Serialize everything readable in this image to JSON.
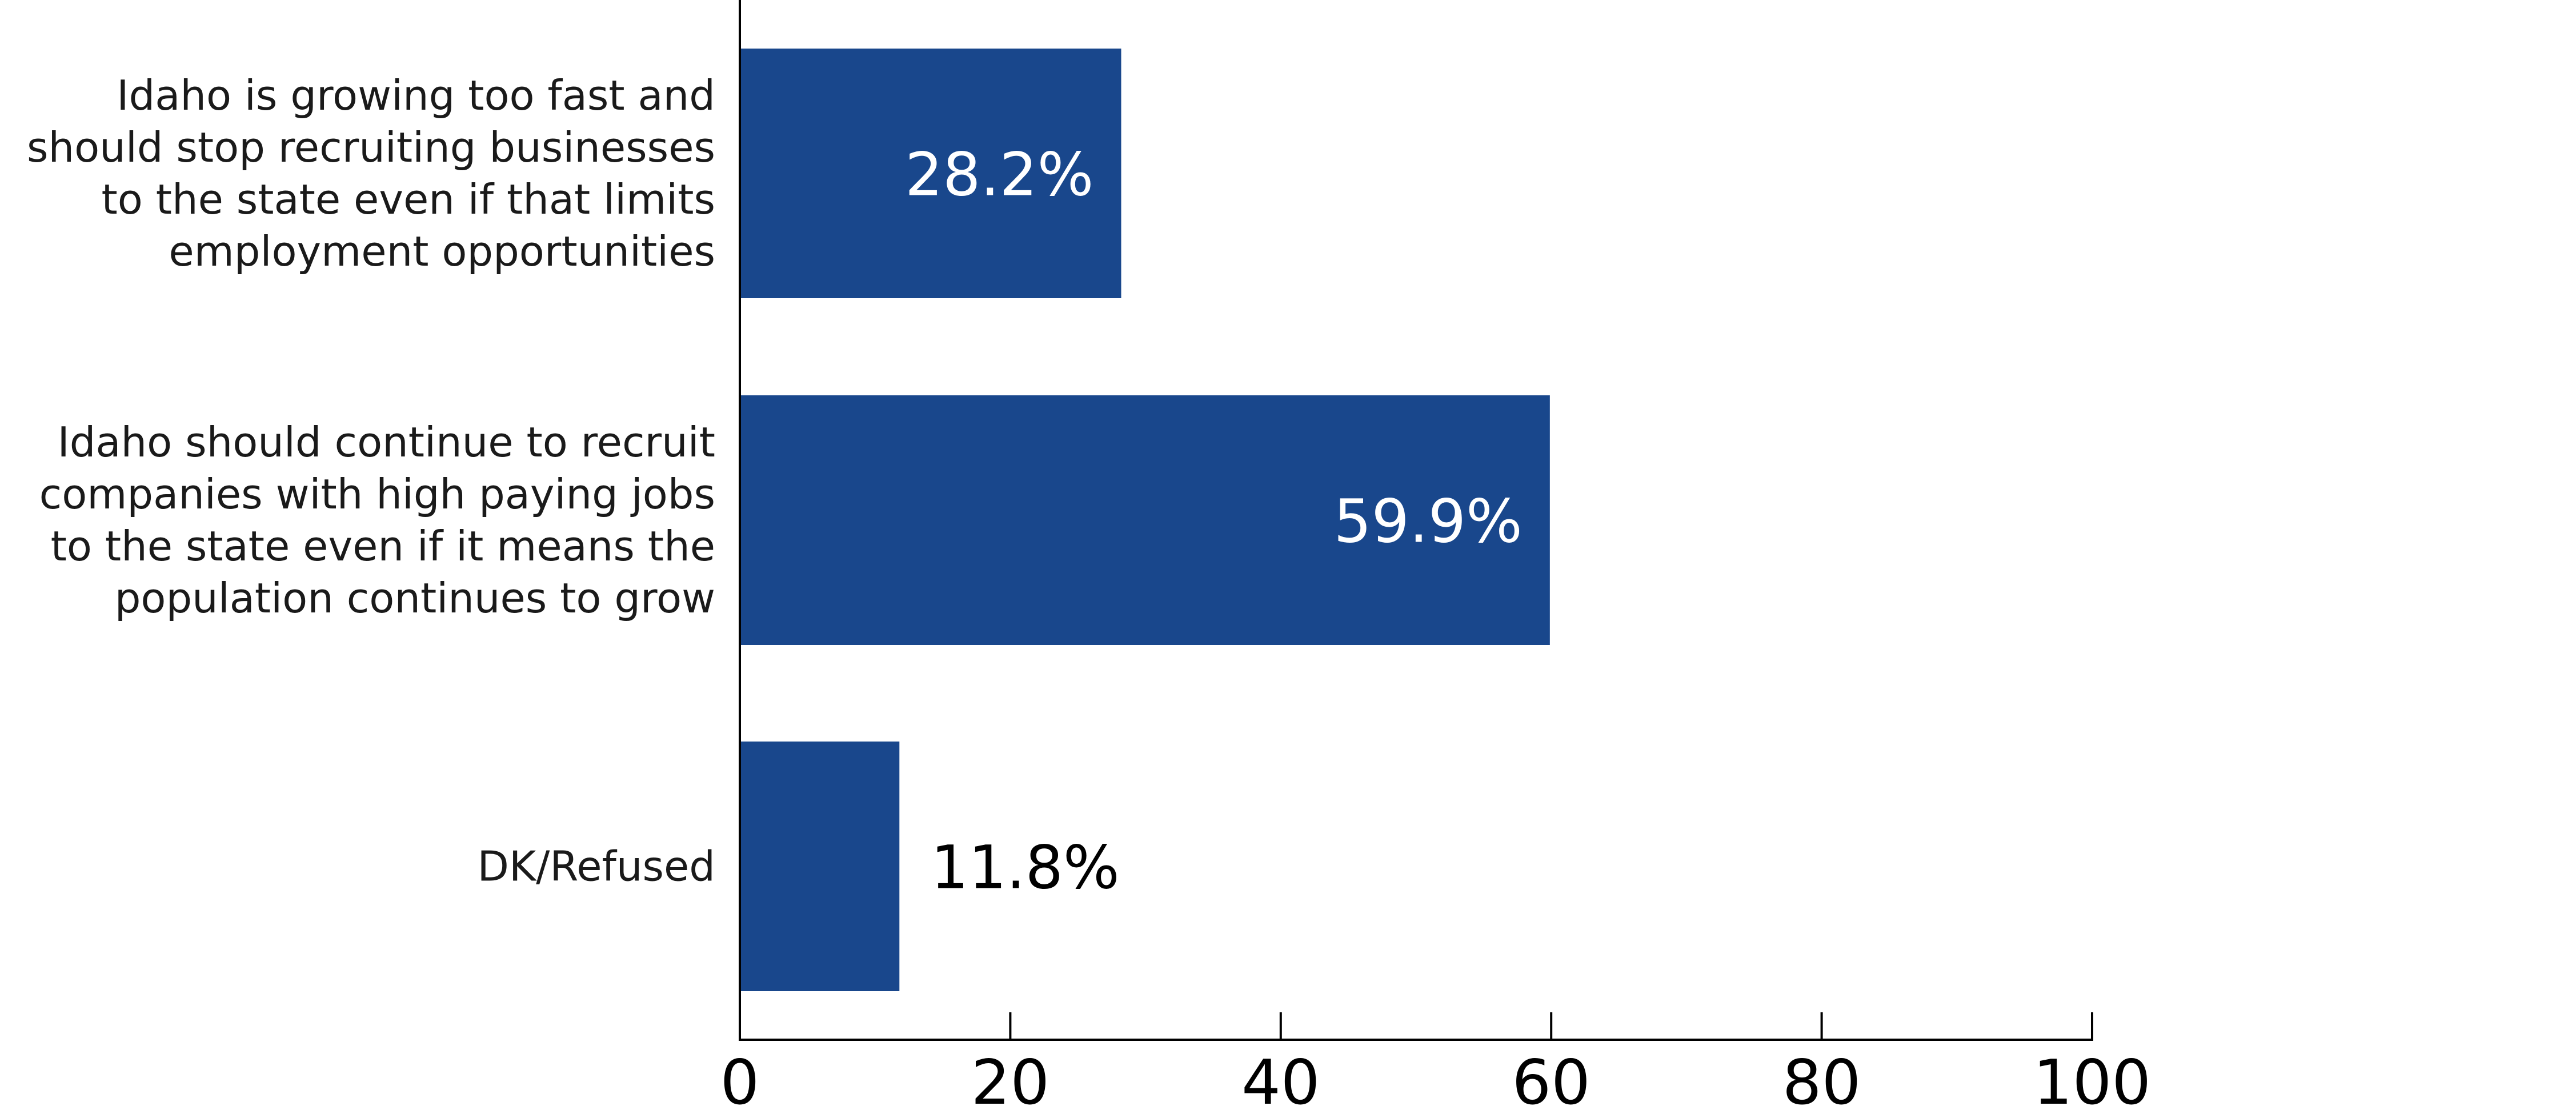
{
  "chart_data": {
    "type": "bar",
    "orientation": "horizontal",
    "categories": [
      [
        "Idaho is growing too fast and",
        "should stop recruiting businesses",
        "to the state even if that limits",
        "employment opportunities"
      ],
      [
        "Idaho should continue to recruit",
        "companies with high paying jobs",
        "to the state even if it means the",
        "population continues to grow"
      ],
      [
        "DK/Refused"
      ]
    ],
    "values": [
      28.2,
      59.9,
      11.8
    ],
    "data_labels": [
      "28.2%",
      "59.9%",
      "11.8%"
    ],
    "xlim": [
      0,
      100
    ],
    "xticks": [
      "0",
      "20",
      "40",
      "60",
      "80",
      "100"
    ],
    "title": "",
    "xlabel": "",
    "ylabel": "",
    "grid": false,
    "legend": "none",
    "colors": {
      "bar": "#19478c",
      "label_inside": "#ffffff",
      "label_outside": "#000000",
      "axis": "#000000"
    }
  }
}
